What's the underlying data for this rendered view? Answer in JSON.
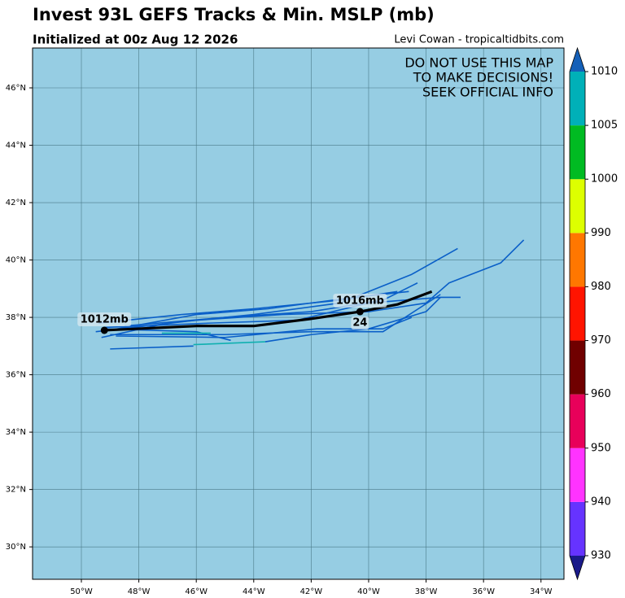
{
  "chart_data": {
    "type": "map",
    "title": "Invest 93L GEFS Tracks & Min. MSLP (mb)",
    "subtitle": "Initialized at 00z Aug 12 2026",
    "credit": "Levi Cowan - tropicaltidbits.com",
    "annotation": [
      "DO NOT USE THIS MAP",
      "TO MAKE DECISIONS!",
      "SEEK OFFICIAL INFO"
    ],
    "annotation_color": "#ff0000",
    "background_color": "#96cde3",
    "grid": true,
    "xlim": [
      -51.7,
      -33.2
    ],
    "ylim": [
      28.87,
      47.39
    ],
    "xticks": [
      {
        "value": -50,
        "label": "50°W"
      },
      {
        "value": -48,
        "label": "48°W"
      },
      {
        "value": -46,
        "label": "46°W"
      },
      {
        "value": -44,
        "label": "44°W"
      },
      {
        "value": -42,
        "label": "42°W"
      },
      {
        "value": -40,
        "label": "40°W"
      },
      {
        "value": -38,
        "label": "38°W"
      },
      {
        "value": -36,
        "label": "36°W"
      },
      {
        "value": -34,
        "label": "34°W"
      }
    ],
    "yticks": [
      {
        "value": 30,
        "label": "30°N"
      },
      {
        "value": 32,
        "label": "32°N"
      },
      {
        "value": 34,
        "label": "34°N"
      },
      {
        "value": 36,
        "label": "36°N"
      },
      {
        "value": 38,
        "label": "38°N"
      },
      {
        "value": 40,
        "label": "40°N"
      },
      {
        "value": 42,
        "label": "42°N"
      },
      {
        "value": 44,
        "label": "44°N"
      },
      {
        "value": 46,
        "label": "46°N"
      }
    ],
    "series": [
      {
        "color": "#0a5fc8",
        "x": [
          -49.3,
          -47,
          -44,
          -41,
          -38.5,
          -36.9
        ],
        "values": [
          37.3,
          37.8,
          38.1,
          38.5,
          39.5,
          40.4
        ]
      },
      {
        "color": "#0a5fc8",
        "x": [
          -49.5,
          -46,
          -43,
          -40,
          -38,
          -37.2,
          -35.4,
          -34.6
        ],
        "values": [
          37.5,
          37.9,
          38.1,
          38.2,
          38.5,
          39.2,
          39.9,
          40.7
        ]
      },
      {
        "color": "#0a5fc8",
        "x": [
          -49,
          -46.1
        ],
        "values": [
          36.9,
          37.0
        ]
      },
      {
        "color": "#10b0b0",
        "x": [
          -46.1,
          -43.6
        ],
        "values": [
          37.05,
          37.15
        ]
      },
      {
        "color": "#0a5fc8",
        "x": [
          -43.6,
          -42,
          -40,
          -38,
          -37.5
        ],
        "values": [
          37.15,
          37.4,
          37.6,
          38.2,
          38.7
        ]
      },
      {
        "color": "#0a5fc8",
        "x": [
          -49.4,
          -46.5,
          -44,
          -41,
          -39
        ],
        "values": [
          37.8,
          38.1,
          38.3,
          38.6,
          38.9
        ]
      },
      {
        "color": "#0a5fc8",
        "x": [
          -49.2,
          -46,
          -44.8
        ],
        "values": [
          37.6,
          37.5,
          37.2
        ]
      },
      {
        "color": "#10b0b0",
        "x": [
          -47.2,
          -45.5
        ],
        "values": [
          37.45,
          37.45
        ]
      },
      {
        "color": "#0a5fc8",
        "x": [
          -49,
          -45,
          -42,
          -39.5,
          -37.5
        ],
        "values": [
          37.4,
          37.4,
          37.5,
          37.5,
          38.8
        ]
      },
      {
        "color": "#0a5fc8",
        "x": [
          -48.5,
          -45,
          -42,
          -39.5,
          -38.3
        ],
        "values": [
          37.7,
          38.0,
          38.2,
          38.6,
          39.2
        ]
      },
      {
        "color": "#0a5fc8",
        "x": [
          -49.3,
          -46,
          -43.5,
          -40.5,
          -38.6
        ],
        "values": [
          37.5,
          38.1,
          38.3,
          38.7,
          38.9
        ]
      },
      {
        "color": "#0a5fc8",
        "x": [
          -48.8,
          -45,
          -41.8,
          -39.5,
          -38.5
        ],
        "values": [
          37.35,
          37.3,
          37.6,
          37.6,
          38.0
        ]
      },
      {
        "color": "#0a5fc8",
        "x": [
          -49.2,
          -45.5,
          -42.5,
          -40,
          -37.5,
          -36.8
        ],
        "values": [
          37.65,
          37.8,
          37.9,
          38.5,
          38.7,
          38.7
        ]
      },
      {
        "color": "#000000",
        "x": [
          -49.2,
          -46,
          -44,
          -42,
          -40.3,
          -39,
          -37.8
        ],
        "values": [
          37.55,
          37.7,
          37.7,
          37.95,
          38.2,
          38.45,
          38.9
        ]
      }
    ],
    "marker_points": [
      {
        "x": -49.2,
        "y": 37.55,
        "label": "1012mb"
      },
      {
        "x": -40.3,
        "y": 38.2,
        "label": "1016mb",
        "sublabel": "24"
      }
    ],
    "colorbar": {
      "levels": [
        930,
        940,
        950,
        960,
        970,
        980,
        990,
        1000,
        1005,
        1010
      ],
      "colors": [
        "#6633ff",
        "#ff33ff",
        "#e8005a",
        "#700000",
        "#ff1400",
        "#ff7700",
        "#ddff00",
        "#00bb22",
        "#00b0b8"
      ],
      "extend_colors": [
        "#1a1a8a",
        "#1560b8"
      ]
    }
  }
}
